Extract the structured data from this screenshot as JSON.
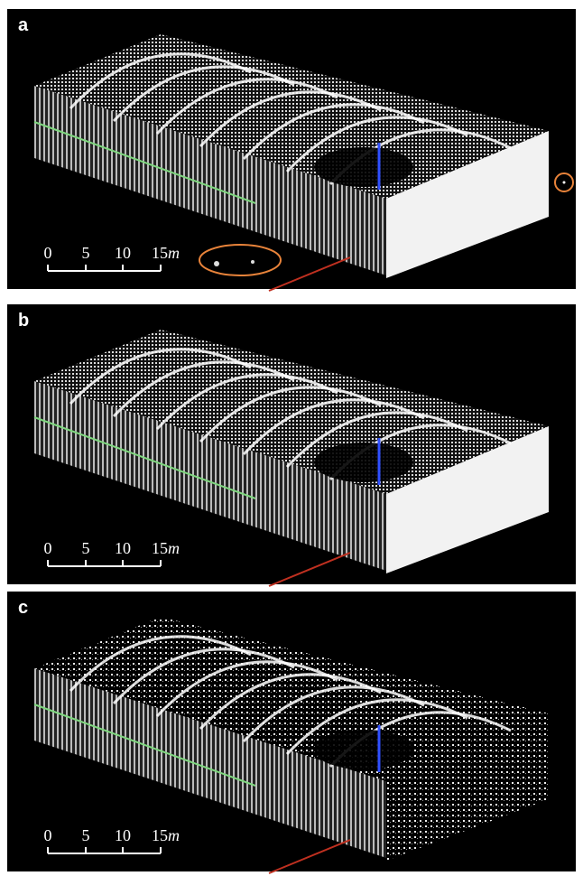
{
  "panels": [
    {
      "label": "a",
      "scale_labels": [
        "0",
        "5",
        "10",
        "15"
      ],
      "scale_unit": "m"
    },
    {
      "label": "b",
      "scale_labels": [
        "0",
        "5",
        "10",
        "15"
      ],
      "scale_unit": "m"
    },
    {
      "label": "c",
      "scale_labels": [
        "0",
        "5",
        "10",
        "15"
      ],
      "scale_unit": "m"
    }
  ]
}
